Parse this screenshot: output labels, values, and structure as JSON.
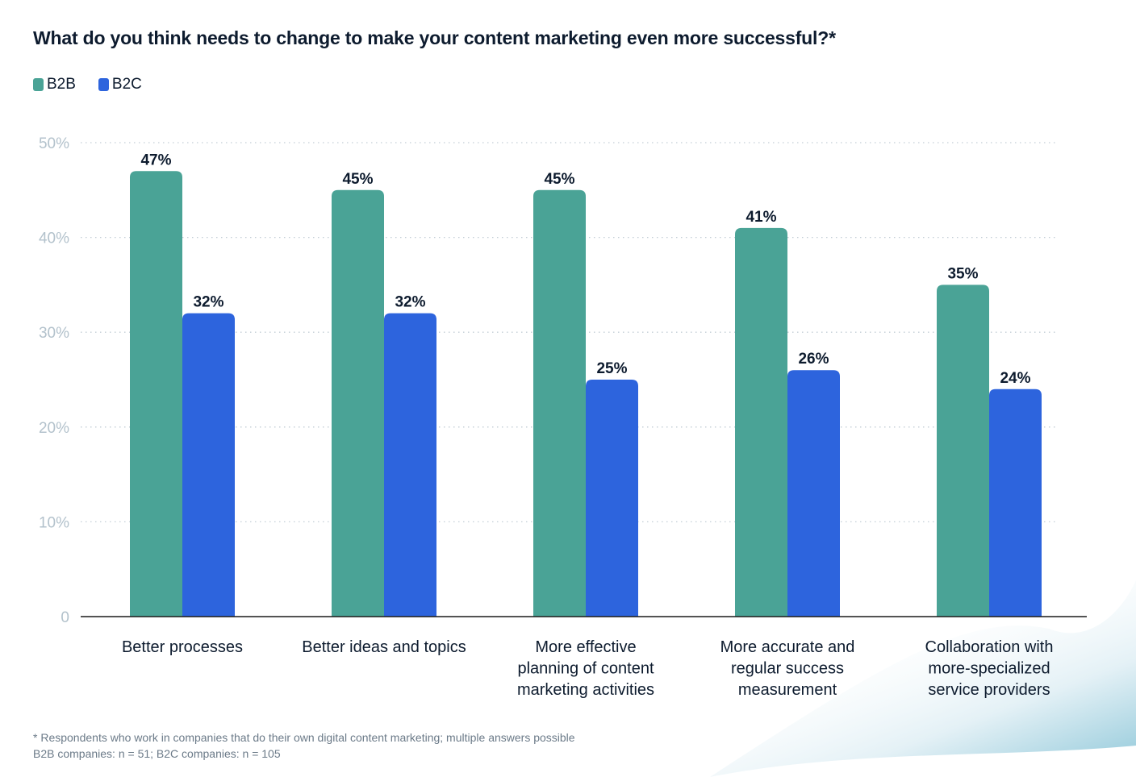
{
  "chart_data": {
    "type": "bar",
    "title": "What do you think needs to change to make your content marketing even more successful?*",
    "xlabel": "",
    "ylabel": "",
    "ylim": [
      0,
      50
    ],
    "yticks": [
      0,
      10,
      20,
      30,
      40,
      50
    ],
    "ytick_labels": [
      "0",
      "10%",
      "20%",
      "30%",
      "40%",
      "50%"
    ],
    "grid": true,
    "legend_position": "top-left",
    "categories": [
      [
        "Better processes"
      ],
      [
        "Better ideas and topics"
      ],
      [
        "More effective",
        "planning of content",
        "marketing activities"
      ],
      [
        "More accurate and",
        "regular success",
        "measurement"
      ],
      [
        "Collaboration with",
        "more-specialized",
        "service providers"
      ]
    ],
    "series": [
      {
        "name": "B2B",
        "color": "#4aa396",
        "values": [
          47,
          45,
          45,
          41,
          35
        ],
        "labels": [
          "47%",
          "45%",
          "45%",
          "41%",
          "35%"
        ]
      },
      {
        "name": "B2C",
        "color": "#2d64dd",
        "values": [
          32,
          32,
          25,
          26,
          24
        ],
        "labels": [
          "32%",
          "32%",
          "25%",
          "26%",
          "24%"
        ]
      }
    ]
  },
  "footnote": {
    "line1": "* Respondents who work in companies that do their own digital content marketing; multiple answers possible",
    "line2": "B2B companies: n = 51; B2C companies: n = 105"
  }
}
